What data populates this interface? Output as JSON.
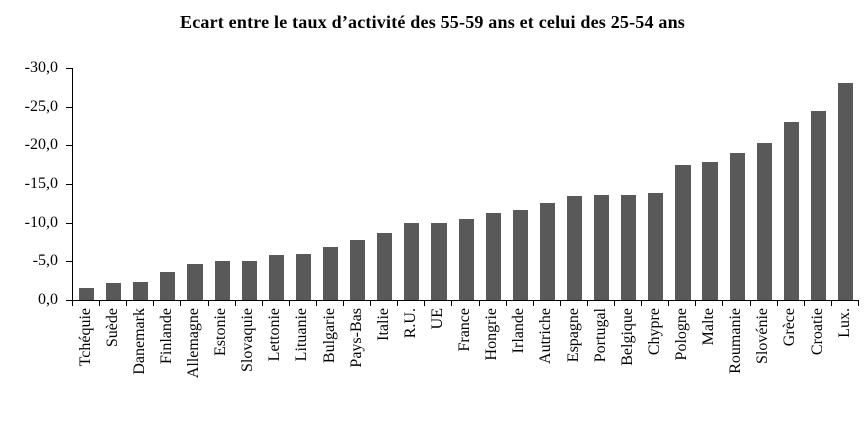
{
  "chart_data": {
    "type": "bar",
    "title": "Ecart entre le taux d’activité des 55-59 ans et celui des 25-54 ans",
    "categories": [
      "Tchéquie",
      "Suède",
      "Danemark",
      "Finlande",
      "Allemagne",
      "Estonie",
      "Slovaquie",
      "Lettonie",
      "Lituanie",
      "Bulgarie",
      "Pays-Bas",
      "Italie",
      "R.U.",
      "UE",
      "France",
      "Hongrie",
      "Irlande",
      "Autriche",
      "Espagne",
      "Portugal",
      "Belgique",
      "Chypre",
      "Pologne",
      "Malte",
      "Roumanie",
      "Slovénie",
      "Grèce",
      "Croatie",
      "Lux."
    ],
    "values": [
      -1.5,
      -2.2,
      -2.3,
      -3.6,
      -4.7,
      -5.0,
      -5.0,
      -5.8,
      -6.0,
      -6.9,
      -7.8,
      -8.7,
      -10.0,
      -10.0,
      -10.5,
      -11.2,
      -11.6,
      -12.5,
      -13.5,
      -13.6,
      -13.6,
      -13.9,
      -17.5,
      -17.8,
      -19.0,
      -20.3,
      -23.0,
      -24.5,
      -28.0
    ],
    "xlabel": "",
    "ylabel": "",
    "ylim": [
      -30,
      0
    ],
    "axis_inverted": true,
    "yticks": [
      "-30,0",
      "-25,0",
      "-20,0",
      "-15,0",
      "-10,0",
      "-5,0",
      "0,0"
    ],
    "grid": false,
    "legend": false,
    "bar_color": "#595959",
    "axis_color": "#000000"
  }
}
